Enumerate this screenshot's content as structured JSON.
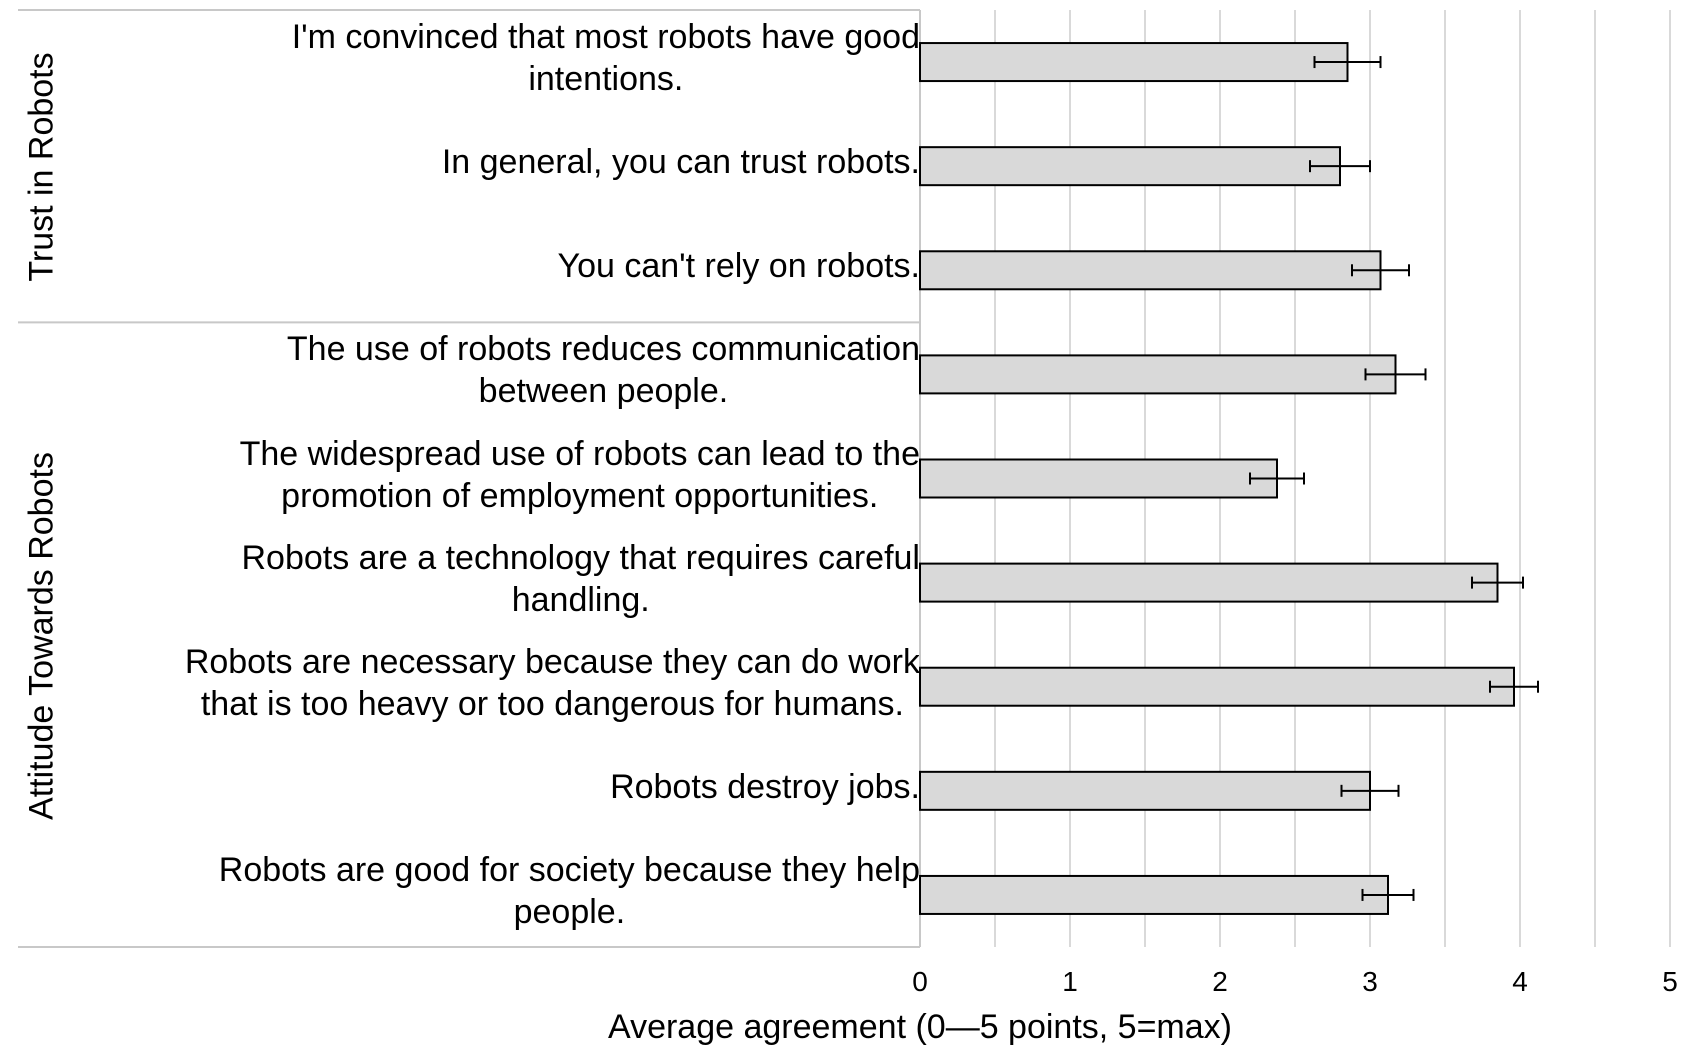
{
  "chart_data": {
    "type": "bar",
    "orientation": "horizontal",
    "xlabel": "Average agreement (0—5 points, 5=max)",
    "xlim": [
      0,
      5
    ],
    "xticks": [
      "0",
      "1",
      "2",
      "3",
      "4",
      "5"
    ],
    "grid": "vertical, minor every 0.5",
    "bar_color": "#d9d9d9",
    "groups": [
      {
        "name": "Trust in Robots",
        "items": [
          0,
          1,
          2
        ]
      },
      {
        "name": "Attitude Towards Robots",
        "items": [
          3,
          4,
          5,
          6,
          7,
          8
        ]
      }
    ],
    "categories": [
      [
        "I'm convinced that most robots have good",
        "intentions."
      ],
      [
        "In general, you can trust robots."
      ],
      [
        "You can't rely on robots."
      ],
      [
        "The use of robots reduces communication",
        "between people."
      ],
      [
        "The widespread use of robots can lead to the",
        "promotion of employment opportunities."
      ],
      [
        "Robots are a technology that requires careful",
        "handling."
      ],
      [
        "Robots are necessary because they can do work",
        "that is too heavy or too dangerous for humans."
      ],
      [
        "Robots destroy jobs."
      ],
      [
        "Robots are good for society because they help",
        "people."
      ]
    ],
    "values": [
      2.85,
      2.8,
      3.07,
      3.17,
      2.38,
      3.85,
      3.96,
      3.0,
      3.12
    ],
    "error": [
      0.22,
      0.2,
      0.19,
      0.2,
      0.18,
      0.17,
      0.16,
      0.19,
      0.17
    ]
  }
}
